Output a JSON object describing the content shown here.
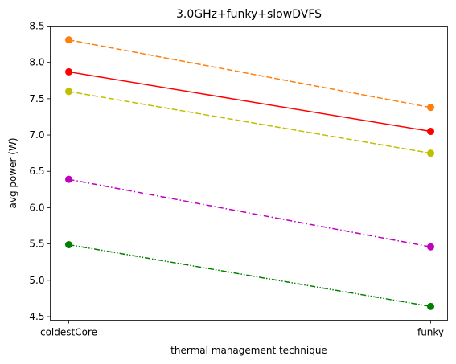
{
  "chart_data": {
    "type": "line",
    "title": "3.0GHz+funky+slowDVFS",
    "xlabel": "thermal management technique",
    "ylabel": "avg power (W)",
    "categories": [
      "coldestCore",
      "funky"
    ],
    "ylim": [
      4.45,
      8.5
    ],
    "yticks": [
      "4.5",
      "5.0",
      "5.5",
      "6.0",
      "6.5",
      "7.0",
      "7.5",
      "8.0",
      "8.5"
    ],
    "grid": false,
    "legend": "none",
    "series": [
      {
        "values": [
          8.31,
          7.38
        ],
        "color": "#ff7f0e",
        "linestyle": "dashed"
      },
      {
        "values": [
          7.87,
          7.05
        ],
        "color": "#ff0000",
        "linestyle": "solid"
      },
      {
        "values": [
          7.6,
          6.75
        ],
        "color": "#bfbf00",
        "linestyle": "dashed"
      },
      {
        "values": [
          6.39,
          5.46
        ],
        "color": "#bf00bf",
        "linestyle": "dashdot"
      },
      {
        "values": [
          5.49,
          4.64
        ],
        "color": "#008000",
        "linestyle": "dashdotdot"
      }
    ]
  }
}
